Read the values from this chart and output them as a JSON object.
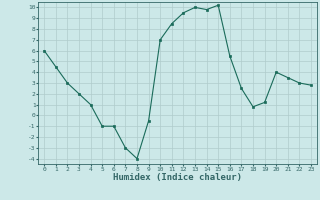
{
  "x": [
    0,
    1,
    2,
    3,
    4,
    5,
    6,
    7,
    8,
    9,
    10,
    11,
    12,
    13,
    14,
    15,
    16,
    17,
    18,
    19,
    20,
    21,
    22,
    23
  ],
  "y": [
    6,
    4.5,
    3,
    2,
    1,
    -1,
    -1,
    -3,
    -4,
    -0.5,
    7,
    8.5,
    9.5,
    10,
    9.8,
    10.2,
    5.5,
    2.5,
    0.8,
    1.2,
    4,
    3.5,
    3,
    2.8
  ],
  "line_color": "#1a6b5a",
  "marker_color": "#1a6b5a",
  "bg_color": "#cce8e8",
  "grid_color": "#b0cccc",
  "xlabel": "Humidex (Indice chaleur)",
  "ylim": [
    -4.5,
    10.5
  ],
  "xlim": [
    -0.5,
    23.5
  ],
  "yticks": [
    10,
    9,
    8,
    7,
    6,
    5,
    4,
    3,
    2,
    1,
    0,
    -1,
    -2,
    -3,
    -4
  ],
  "xticks": [
    0,
    1,
    2,
    3,
    4,
    5,
    6,
    7,
    8,
    9,
    10,
    11,
    12,
    13,
    14,
    15,
    16,
    17,
    18,
    19,
    20,
    21,
    22,
    23
  ],
  "tick_fontsize": 4.5,
  "label_fontsize": 6.5,
  "outer_bg": "#cce8e8",
  "spine_color": "#336666"
}
